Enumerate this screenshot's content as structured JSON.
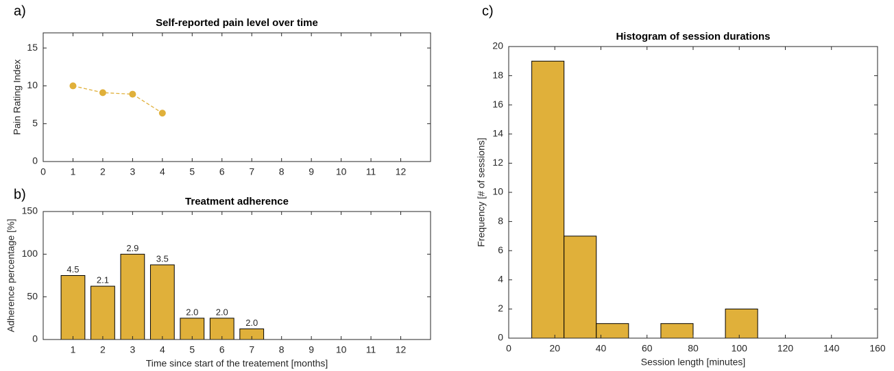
{
  "chart_data": [
    {
      "type": "line",
      "panel_label": "a)",
      "title": "Self-reported pain level over time",
      "y_label": "Pain Rating Index",
      "x": [
        1,
        2,
        3,
        4
      ],
      "values": [
        10,
        9.1,
        8.9,
        6.4
      ],
      "color": "#e0b03a",
      "line_style": "dashed",
      "xlim": [
        0,
        13
      ],
      "xticks": [
        0,
        1,
        2,
        3,
        4,
        5,
        6,
        7,
        8,
        9,
        10,
        11,
        12
      ],
      "ylim": [
        0,
        17
      ],
      "yticks": [
        0,
        5,
        10,
        15
      ]
    },
    {
      "type": "bar",
      "panel_label": "b)",
      "title": "Treatment adherence",
      "x_label": "Time since start of the treatement [months]",
      "y_label": "Adherence percentage [%]",
      "x": [
        1,
        2,
        3,
        4,
        5,
        6,
        7,
        8,
        9,
        10,
        11,
        12
      ],
      "values": [
        75,
        62.5,
        100,
        87.5,
        25,
        25,
        12.5,
        0,
        0,
        0,
        0,
        0
      ],
      "bar_labels": [
        "4.5",
        "2.1",
        "2.9",
        "3.5",
        "2.0",
        "2.0",
        "2.0",
        null,
        null,
        null,
        null,
        null
      ],
      "color": "#e0b03a",
      "xlim": [
        0,
        13
      ],
      "xticks": [
        1,
        2,
        3,
        4,
        5,
        6,
        7,
        8,
        9,
        10,
        11,
        12
      ],
      "ylim": [
        0,
        150
      ],
      "yticks": [
        0,
        50,
        100,
        150
      ]
    },
    {
      "type": "histogram",
      "panel_label": "c)",
      "title": "Histogram of session durations",
      "x_label": "Session length [minutes]",
      "y_label": "Frequency [# of sessions]",
      "bins": [
        10,
        24,
        38,
        52,
        66,
        80,
        94,
        108
      ],
      "values": [
        19,
        7,
        1,
        0,
        1,
        0,
        2
      ],
      "color": "#e0b03a",
      "xlim": [
        0,
        160
      ],
      "xticks": [
        0,
        20,
        40,
        60,
        80,
        100,
        120,
        140,
        160
      ],
      "ylim": [
        0,
        20
      ],
      "yticks": [
        0,
        2,
        4,
        6,
        8,
        10,
        12,
        14,
        16,
        18,
        20
      ]
    }
  ]
}
